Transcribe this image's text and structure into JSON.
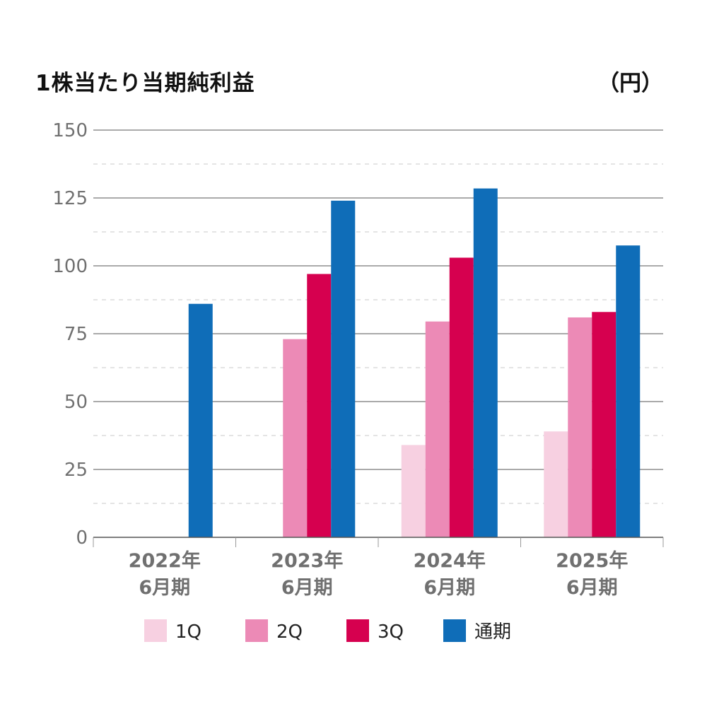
{
  "chart_data": {
    "type": "bar",
    "title": "1株当たり当期純利益",
    "unit": "（円）",
    "ylim": [
      0,
      150
    ],
    "yticks": [
      0,
      25,
      50,
      75,
      100,
      125,
      150
    ],
    "grid": true,
    "legend_position": "bottom",
    "categories": [
      [
        "2022年",
        "6月期"
      ],
      [
        "2023年",
        "6月期"
      ],
      [
        "2024年",
        "6月期"
      ],
      [
        "2025年",
        "6月期"
      ]
    ],
    "series": [
      {
        "name": "1Q",
        "color": "#f7d0e1",
        "values": [
          null,
          null,
          34,
          39
        ]
      },
      {
        "name": "2Q",
        "color": "#ec8ab6",
        "values": [
          null,
          73,
          79.5,
          81
        ]
      },
      {
        "name": "3Q",
        "color": "#d6004f",
        "values": [
          null,
          97,
          103,
          83
        ]
      },
      {
        "name": "通期",
        "color": "#0f6db8",
        "values": [
          86,
          124,
          128.5,
          107.5
        ]
      }
    ]
  }
}
